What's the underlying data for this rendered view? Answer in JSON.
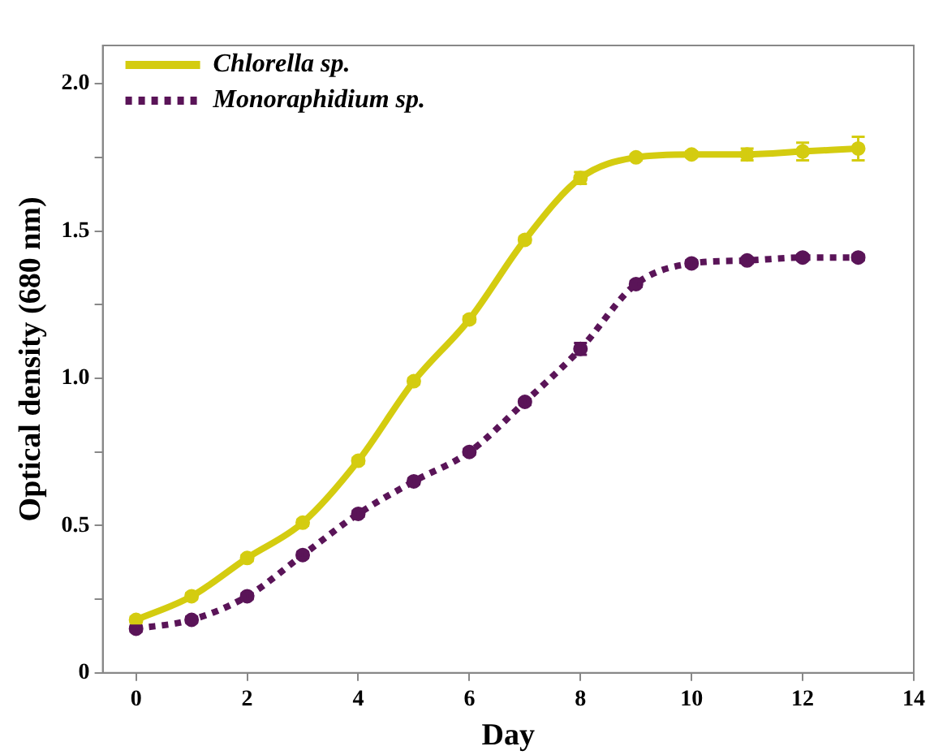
{
  "chart_data": {
    "type": "line",
    "xlabel": "Day",
    "ylabel": "Optical density (680 nm)",
    "x": [
      0,
      1,
      2,
      3,
      4,
      5,
      6,
      7,
      8,
      9,
      10,
      11,
      12,
      13
    ],
    "xlim": [
      -0.6,
      14
    ],
    "xticks": [
      0,
      2,
      4,
      6,
      8,
      10,
      12,
      14
    ],
    "ylim": [
      0,
      2.13
    ],
    "yticks": [
      0,
      {
        "value": 0.25,
        "label": null
      },
      {
        "value": 0.5,
        "label": "0.5"
      },
      {
        "value": 0.75,
        "label": null
      },
      {
        "value": 1,
        "label": "1.0"
      },
      {
        "value": 1.25,
        "label": null
      },
      {
        "value": 1.5,
        "label": "1.5"
      },
      {
        "value": 1.75,
        "label": null
      },
      {
        "value": 2,
        "label": "2.0"
      }
    ],
    "grid": false,
    "legend": "top left",
    "marker": "circle",
    "series": [
      {
        "name": "Chlorella sp.",
        "color": "#d4cc10",
        "line_style": "solid",
        "values": [
          0.18,
          0.26,
          0.39,
          0.51,
          0.72,
          0.99,
          1.2,
          1.47,
          1.68,
          1.75,
          1.76,
          1.76,
          1.77,
          1.78
        ],
        "errors": [
          0.01,
          0.01,
          0.01,
          0.01,
          0.01,
          0.01,
          0.01,
          0.01,
          0.02,
          0.01,
          0.01,
          0.02,
          0.03,
          0.04
        ]
      },
      {
        "name": "Monoraphidium sp.",
        "color": "#5a1458",
        "line_style": "dotted",
        "values": [
          0.15,
          0.18,
          0.26,
          0.4,
          0.54,
          0.65,
          0.75,
          0.92,
          1.1,
          1.32,
          1.39,
          1.4,
          1.41,
          1.41
        ],
        "errors": [
          0.01,
          0.01,
          0.01,
          0.01,
          0.01,
          0.01,
          0.01,
          0.01,
          0.02,
          0.01,
          0.01,
          0.01,
          0.01,
          0.01
        ]
      }
    ]
  }
}
